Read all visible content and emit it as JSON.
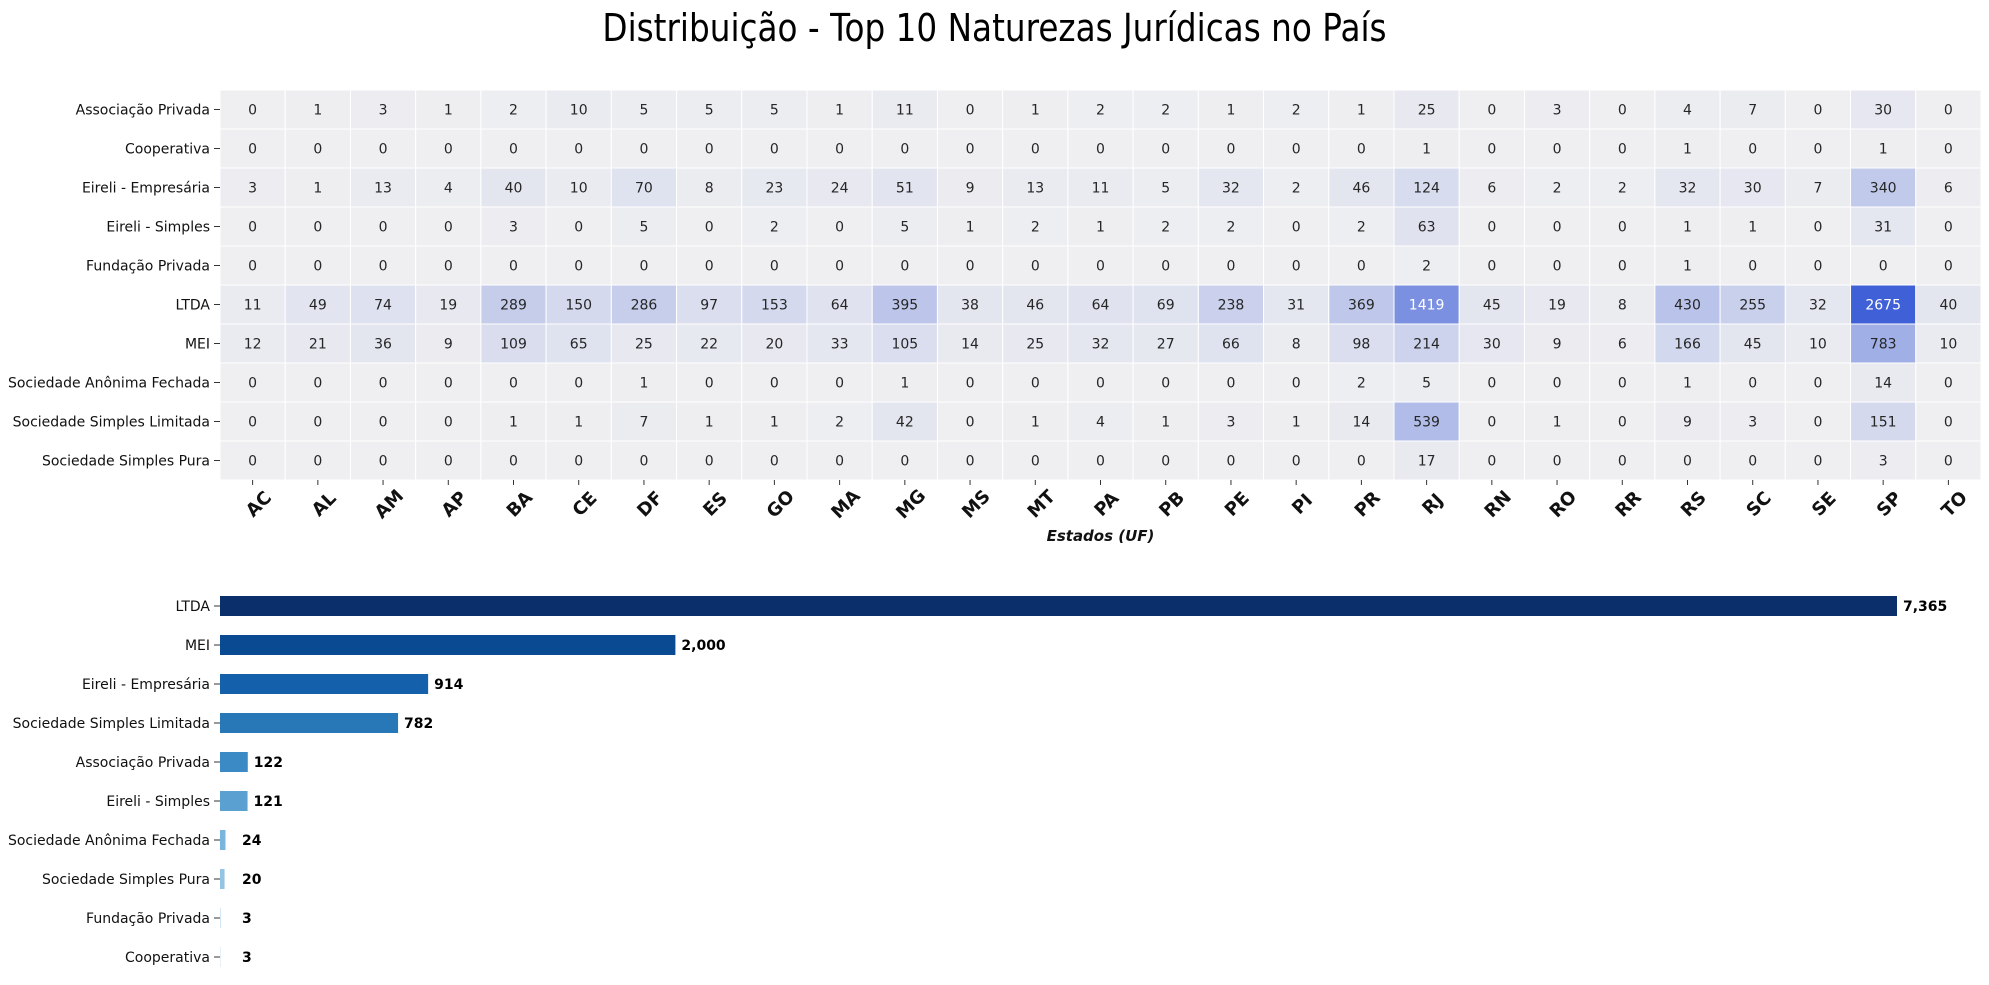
{
  "title": "Distribuição - Top 10 Naturezas Jurídicas no País",
  "chart_data": [
    {
      "type": "heatmap",
      "xlabel": "Estados (UF)",
      "columns": [
        "AC",
        "AL",
        "AM",
        "AP",
        "BA",
        "CE",
        "DF",
        "ES",
        "GO",
        "MA",
        "MG",
        "MS",
        "MT",
        "PA",
        "PB",
        "PE",
        "PI",
        "PR",
        "RJ",
        "RN",
        "RO",
        "RR",
        "RS",
        "SC",
        "SE",
        "SP",
        "TO"
      ],
      "rows": [
        "Associação Privada",
        "Cooperativa",
        "Eireli - Empresária",
        "Eireli - Simples",
        "Fundação Privada",
        "LTDA",
        "MEI",
        "Sociedade Anônima Fechada",
        "Sociedade Simples Limitada",
        "Sociedade Simples Pura"
      ],
      "values": [
        [
          0,
          1,
          3,
          1,
          2,
          10,
          5,
          5,
          5,
          1,
          11,
          0,
          1,
          2,
          2,
          1,
          2,
          1,
          25,
          0,
          3,
          0,
          4,
          7,
          0,
          30,
          0
        ],
        [
          0,
          0,
          0,
          0,
          0,
          0,
          0,
          0,
          0,
          0,
          0,
          0,
          0,
          0,
          0,
          0,
          0,
          0,
          1,
          0,
          0,
          0,
          1,
          0,
          0,
          1,
          0
        ],
        [
          3,
          1,
          13,
          4,
          40,
          10,
          70,
          8,
          23,
          24,
          51,
          9,
          13,
          11,
          5,
          32,
          2,
          46,
          124,
          6,
          2,
          2,
          32,
          30,
          7,
          340,
          6
        ],
        [
          0,
          0,
          0,
          0,
          3,
          0,
          5,
          0,
          2,
          0,
          5,
          1,
          2,
          1,
          2,
          2,
          0,
          2,
          63,
          0,
          0,
          0,
          1,
          1,
          0,
          31,
          0
        ],
        [
          0,
          0,
          0,
          0,
          0,
          0,
          0,
          0,
          0,
          0,
          0,
          0,
          0,
          0,
          0,
          0,
          0,
          0,
          2,
          0,
          0,
          0,
          1,
          0,
          0,
          0,
          0
        ],
        [
          11,
          49,
          74,
          19,
          289,
          150,
          286,
          97,
          153,
          64,
          395,
          38,
          46,
          64,
          69,
          238,
          31,
          369,
          1419,
          45,
          19,
          8,
          430,
          255,
          32,
          2675,
          40
        ],
        [
          12,
          21,
          36,
          9,
          109,
          65,
          25,
          22,
          20,
          33,
          105,
          14,
          25,
          32,
          27,
          66,
          8,
          98,
          214,
          30,
          9,
          6,
          166,
          45,
          10,
          783,
          10
        ],
        [
          0,
          0,
          0,
          0,
          0,
          0,
          1,
          0,
          0,
          0,
          1,
          0,
          0,
          0,
          0,
          0,
          0,
          2,
          5,
          0,
          0,
          0,
          1,
          0,
          0,
          14,
          0
        ],
        [
          0,
          0,
          0,
          0,
          1,
          1,
          7,
          1,
          1,
          2,
          42,
          0,
          1,
          4,
          1,
          3,
          1,
          14,
          539,
          0,
          1,
          0,
          9,
          3,
          0,
          151,
          0
        ],
        [
          0,
          0,
          0,
          0,
          0,
          0,
          0,
          0,
          0,
          0,
          0,
          0,
          0,
          0,
          0,
          0,
          0,
          0,
          17,
          0,
          0,
          0,
          0,
          0,
          0,
          3,
          0
        ]
      ],
      "colors": {
        "low": "#efeff1",
        "high": "#4060d8"
      }
    },
    {
      "type": "bar",
      "orientation": "horizontal",
      "categories": [
        "LTDA",
        "MEI",
        "Eireli - Empresária",
        "Sociedade Simples Limitada",
        "Associação Privada",
        "Eireli - Simples",
        "Sociedade Anônima Fechada",
        "Sociedade Simples Pura",
        "Fundação Privada",
        "Cooperativa"
      ],
      "values": [
        7365,
        2000,
        914,
        782,
        122,
        121,
        24,
        20,
        3,
        3
      ],
      "value_labels": [
        "7,365",
        "2,000",
        "914",
        "782",
        "122",
        "121",
        "24",
        "20",
        "3",
        "3"
      ],
      "colors": [
        "#0b2f6b",
        "#0a4a93",
        "#1460ab",
        "#2878b8",
        "#3c8ac5",
        "#5aa0d0",
        "#7ab5dc",
        "#93c4e3",
        "#c0dbee",
        "#d9e8f4"
      ]
    }
  ]
}
